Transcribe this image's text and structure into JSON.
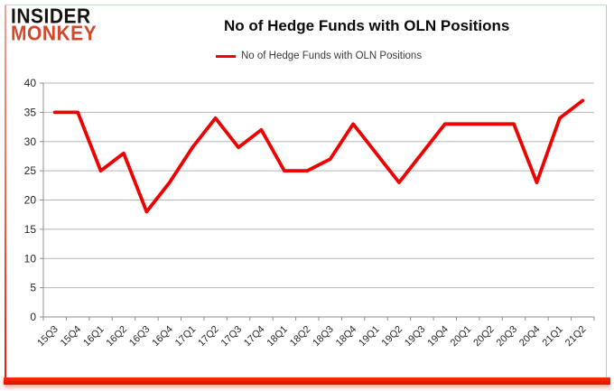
{
  "brand": {
    "line1": "INSIDER",
    "line2": "MONKEY",
    "color": "#d0492d"
  },
  "header": {
    "title": "No of Hedge Funds with OLN Positions"
  },
  "legend": {
    "label": "No of Hedge Funds with OLN Positions",
    "swatch_color": "#ee0101"
  },
  "chart_data": {
    "type": "line",
    "title": "No of Hedge Funds with OLN Positions",
    "categories": [
      "15Q3",
      "15Q4",
      "16Q1",
      "16Q2",
      "16Q3",
      "16Q4",
      "17Q1",
      "17Q2",
      "17Q3",
      "17Q4",
      "18Q1",
      "18Q2",
      "18Q3",
      "18Q4",
      "19Q1",
      "19Q2",
      "19Q3",
      "19Q4",
      "20Q1",
      "20Q2",
      "20Q3",
      "20Q4",
      "21Q1",
      "21Q2"
    ],
    "series": [
      {
        "name": "No of Hedge Funds with OLN Positions",
        "color": "#ee0101",
        "values": [
          35,
          35,
          25,
          28,
          18,
          23,
          29,
          34,
          29,
          32,
          25,
          25,
          27,
          33,
          28,
          23,
          28,
          33,
          33,
          33,
          33,
          23,
          34,
          37
        ]
      }
    ],
    "ylim": [
      0,
      40
    ],
    "yticks": [
      0,
      5,
      10,
      15,
      20,
      25,
      30,
      35,
      40
    ],
    "grid": true,
    "legend_position": "top",
    "xlabel": "",
    "ylabel": "",
    "colors": {
      "gridline": "#b5b5b5",
      "axis": "#8e8e8e",
      "tick_label": "#262626"
    }
  }
}
